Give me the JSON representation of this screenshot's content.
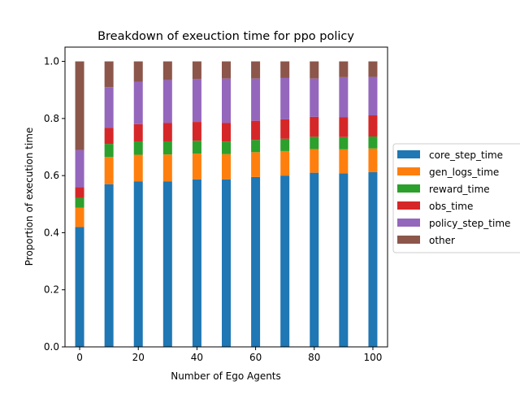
{
  "chart_data": {
    "type": "bar",
    "stacked": true,
    "title": "Breakdown of exeuction time for ppo policy",
    "xlabel": "Number of Ego Agents",
    "ylabel": "Proportion of execution time",
    "x": [
      0,
      10,
      20,
      30,
      40,
      50,
      60,
      70,
      80,
      90,
      100
    ],
    "xlim": [
      -5,
      105
    ],
    "ylim": [
      0,
      1.05
    ],
    "xticks": [
      0,
      20,
      40,
      60,
      80,
      100
    ],
    "xtick_labels": [
      "0",
      "20",
      "40",
      "60",
      "80",
      "100"
    ],
    "yticks": [
      0.0,
      0.2,
      0.4,
      0.6,
      0.8,
      1.0
    ],
    "ytick_labels": [
      "0.0",
      "0.2",
      "0.4",
      "0.6",
      "0.8",
      "1.0"
    ],
    "grid": false,
    "legend_position": "center-right outside",
    "series": [
      {
        "name": "core_step_time",
        "color": "#1f77b4",
        "values": [
          0.42,
          0.57,
          0.58,
          0.58,
          0.587,
          0.587,
          0.595,
          0.6,
          0.61,
          0.608,
          0.612
        ]
      },
      {
        "name": "gen_logs_time",
        "color": "#ff7f0e",
        "values": [
          0.068,
          0.095,
          0.093,
          0.094,
          0.09,
          0.088,
          0.087,
          0.086,
          0.083,
          0.084,
          0.083
        ]
      },
      {
        "name": "reward_time",
        "color": "#2ca02c",
        "values": [
          0.034,
          0.046,
          0.047,
          0.046,
          0.045,
          0.044,
          0.043,
          0.043,
          0.043,
          0.043,
          0.042
        ]
      },
      {
        "name": "obs_time",
        "color": "#d62728",
        "values": [
          0.037,
          0.056,
          0.06,
          0.065,
          0.066,
          0.066,
          0.067,
          0.068,
          0.07,
          0.07,
          0.074
        ]
      },
      {
        "name": "policy_step_time",
        "color": "#9467bd",
        "values": [
          0.13,
          0.143,
          0.148,
          0.15,
          0.15,
          0.155,
          0.148,
          0.145,
          0.134,
          0.14,
          0.135
        ]
      },
      {
        "name": "other",
        "color": "#8c564b",
        "values": [
          0.311,
          0.09,
          0.072,
          0.065,
          0.062,
          0.06,
          0.06,
          0.058,
          0.06,
          0.055,
          0.054
        ]
      }
    ]
  }
}
